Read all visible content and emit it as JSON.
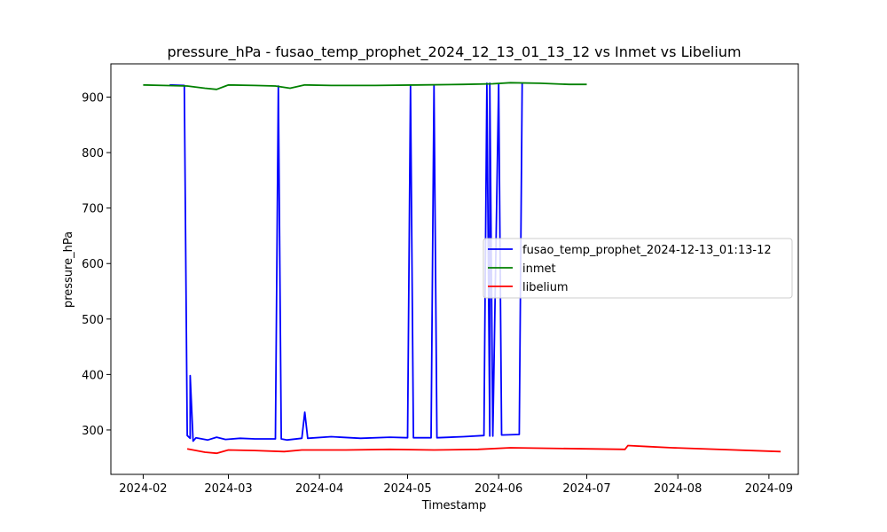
{
  "chart_data": {
    "type": "line",
    "title": "pressure_hPa - fusao_temp_prophet_2024_12_13_01_13_12 vs Inmet vs Libelium",
    "xlabel": "Timestamp",
    "ylabel": "pressure_hPa",
    "xlim": [
      "2024-01-21",
      "2024-09-11"
    ],
    "ylim": [
      220,
      960
    ],
    "grid": false,
    "legend_position": "center-right",
    "x_ticks": [
      "2024-02",
      "2024-03",
      "2024-04",
      "2024-05",
      "2024-06",
      "2024-07",
      "2024-08",
      "2024-09"
    ],
    "y_ticks": [
      300,
      400,
      500,
      600,
      700,
      800,
      900
    ],
    "series": [
      {
        "name": "fusao_temp_prophet_2024-12-13_01:13-12",
        "color": "#0000ff",
        "points": [
          [
            "2024-02-10",
            922
          ],
          [
            "2024-02-15",
            921
          ],
          [
            "2024-02-16",
            290
          ],
          [
            "2024-02-17",
            285
          ],
          [
            "2024-02-17",
            398
          ],
          [
            "2024-02-18",
            280
          ],
          [
            "2024-02-19",
            286
          ],
          [
            "2024-02-23",
            282
          ],
          [
            "2024-02-26",
            287
          ],
          [
            "2024-02-29",
            283
          ],
          [
            "2024-03-05",
            285
          ],
          [
            "2024-03-10",
            284
          ],
          [
            "2024-03-17",
            284
          ],
          [
            "2024-03-18",
            920
          ],
          [
            "2024-03-19",
            284
          ],
          [
            "2024-03-21",
            282
          ],
          [
            "2024-03-26",
            285
          ],
          [
            "2024-03-27",
            332
          ],
          [
            "2024-03-28",
            285
          ],
          [
            "2024-04-05",
            288
          ],
          [
            "2024-04-15",
            285
          ],
          [
            "2024-04-25",
            287
          ],
          [
            "2024-05-01",
            286
          ],
          [
            "2024-05-02",
            920
          ],
          [
            "2024-05-03",
            286
          ],
          [
            "2024-05-09",
            286
          ],
          [
            "2024-05-10",
            921
          ],
          [
            "2024-05-11",
            286
          ],
          [
            "2024-05-20",
            288
          ],
          [
            "2024-05-27",
            290
          ],
          [
            "2024-05-28",
            925
          ],
          [
            "2024-05-29",
            289
          ],
          [
            "2024-05-29",
            925
          ],
          [
            "2024-05-30",
            289
          ],
          [
            "2024-06-01",
            924
          ],
          [
            "2024-06-02",
            291
          ],
          [
            "2024-06-08",
            292
          ],
          [
            "2024-06-09",
            925
          ]
        ]
      },
      {
        "name": "inmet",
        "color": "#008000",
        "points": [
          [
            "2024-02-01",
            922
          ],
          [
            "2024-02-08",
            921
          ],
          [
            "2024-02-16",
            920
          ],
          [
            "2024-02-22",
            916
          ],
          [
            "2024-02-26",
            914
          ],
          [
            "2024-03-01",
            922
          ],
          [
            "2024-03-10",
            921
          ],
          [
            "2024-03-17",
            920
          ],
          [
            "2024-03-22",
            916
          ],
          [
            "2024-03-27",
            922
          ],
          [
            "2024-04-05",
            921
          ],
          [
            "2024-04-20",
            921
          ],
          [
            "2024-05-05",
            922
          ],
          [
            "2024-05-20",
            923
          ],
          [
            "2024-05-30",
            924
          ],
          [
            "2024-06-05",
            926
          ],
          [
            "2024-06-15",
            925
          ],
          [
            "2024-06-25",
            923
          ],
          [
            "2024-07-01",
            923
          ]
        ]
      },
      {
        "name": "libelium",
        "color": "#ff0000",
        "points": [
          [
            "2024-02-16",
            266
          ],
          [
            "2024-02-22",
            260
          ],
          [
            "2024-02-26",
            258
          ],
          [
            "2024-03-01",
            264
          ],
          [
            "2024-03-10",
            263
          ],
          [
            "2024-03-20",
            261
          ],
          [
            "2024-03-26",
            264
          ],
          [
            "2024-04-10",
            264
          ],
          [
            "2024-04-25",
            265
          ],
          [
            "2024-05-10",
            264
          ],
          [
            "2024-05-25",
            265
          ],
          [
            "2024-06-05",
            268
          ],
          [
            "2024-07-14",
            265
          ],
          [
            "2024-07-15",
            272
          ],
          [
            "2024-07-22",
            270
          ],
          [
            "2024-07-30",
            268
          ],
          [
            "2024-09-05",
            261
          ]
        ]
      }
    ]
  }
}
